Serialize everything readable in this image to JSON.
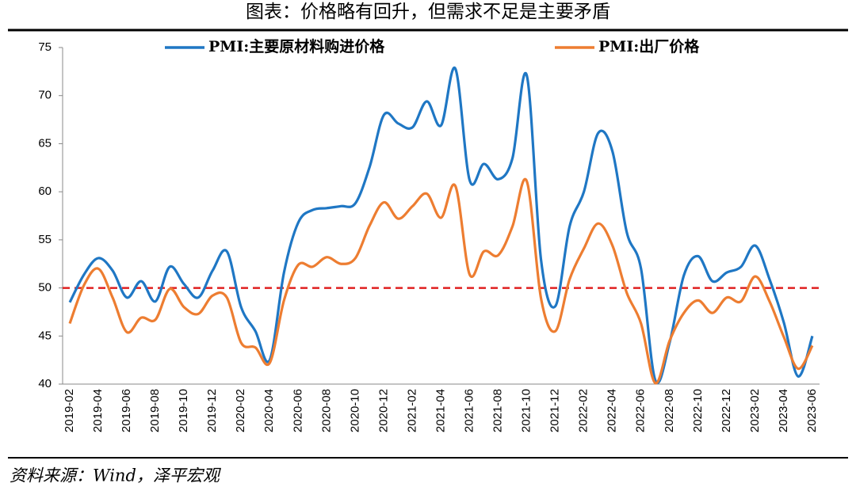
{
  "chart_data": {
    "type": "line",
    "title": "图表：价格略有回升，但需求不足是主要矛盾",
    "source": "资料来源：Wind，泽平宏观",
    "categories": [
      "2019-02",
      null,
      "2019-04",
      null,
      "2019-06",
      null,
      "2019-08",
      null,
      "2019-10",
      null,
      "2019-12",
      null,
      "2020-02",
      null,
      "2020-04",
      null,
      "2020-06",
      null,
      "2020-08",
      null,
      "2020-10",
      null,
      "2020-12",
      null,
      "2021-02",
      null,
      "2021-04",
      null,
      "2021-06",
      null,
      "2021-08",
      null,
      "2021-10",
      null,
      "2021-12",
      null,
      "2022-02",
      null,
      "2022-04",
      null,
      "2022-06",
      null,
      "2022-08",
      null,
      "2022-10",
      null,
      "2022-12",
      null,
      "2023-02",
      null,
      "2023-04",
      null,
      "2023-06"
    ],
    "series": [
      {
        "name": "PMI:主要原材料购进价格",
        "color": "#1f77c4",
        "values": [
          48.5,
          51.4,
          53.1,
          51.8,
          49.0,
          50.7,
          48.6,
          52.2,
          50.4,
          49.0,
          51.8,
          53.8,
          48.0,
          45.5,
          42.5,
          51.6,
          56.8,
          58.1,
          58.3,
          58.5,
          58.8,
          62.6,
          68.0,
          67.1,
          66.7,
          69.4,
          66.9,
          72.8,
          61.2,
          62.9,
          61.3,
          63.5,
          72.1,
          52.9,
          48.1,
          56.4,
          60.0,
          66.1,
          64.2,
          55.8,
          52.0,
          40.4,
          44.3,
          51.3,
          53.3,
          50.7,
          51.6,
          52.2,
          54.4,
          50.9,
          46.4,
          40.8,
          45.0
        ]
      },
      {
        "name": "PMI:出厂价格",
        "color": "#ed7d31",
        "values": [
          46.3,
          50.3,
          52.0,
          49.0,
          45.4,
          46.9,
          46.7,
          49.9,
          48.0,
          47.3,
          49.2,
          49.0,
          44.3,
          43.8,
          42.2,
          48.7,
          52.4,
          52.2,
          53.2,
          52.5,
          53.1,
          56.5,
          58.9,
          57.2,
          58.5,
          59.8,
          57.3,
          60.6,
          51.4,
          53.8,
          53.4,
          56.4,
          61.1,
          48.9,
          45.5,
          50.9,
          54.1,
          56.7,
          54.4,
          49.5,
          46.3,
          40.1,
          44.5,
          47.4,
          48.7,
          47.4,
          49.0,
          48.6,
          51.2,
          48.6,
          44.9,
          41.6,
          44.0
        ]
      }
    ],
    "ylim": [
      40,
      75
    ],
    "yticks": [
      40,
      45,
      50,
      55,
      60,
      65,
      70,
      75
    ],
    "reference_line": {
      "value": 50,
      "color": "#e02020"
    }
  }
}
